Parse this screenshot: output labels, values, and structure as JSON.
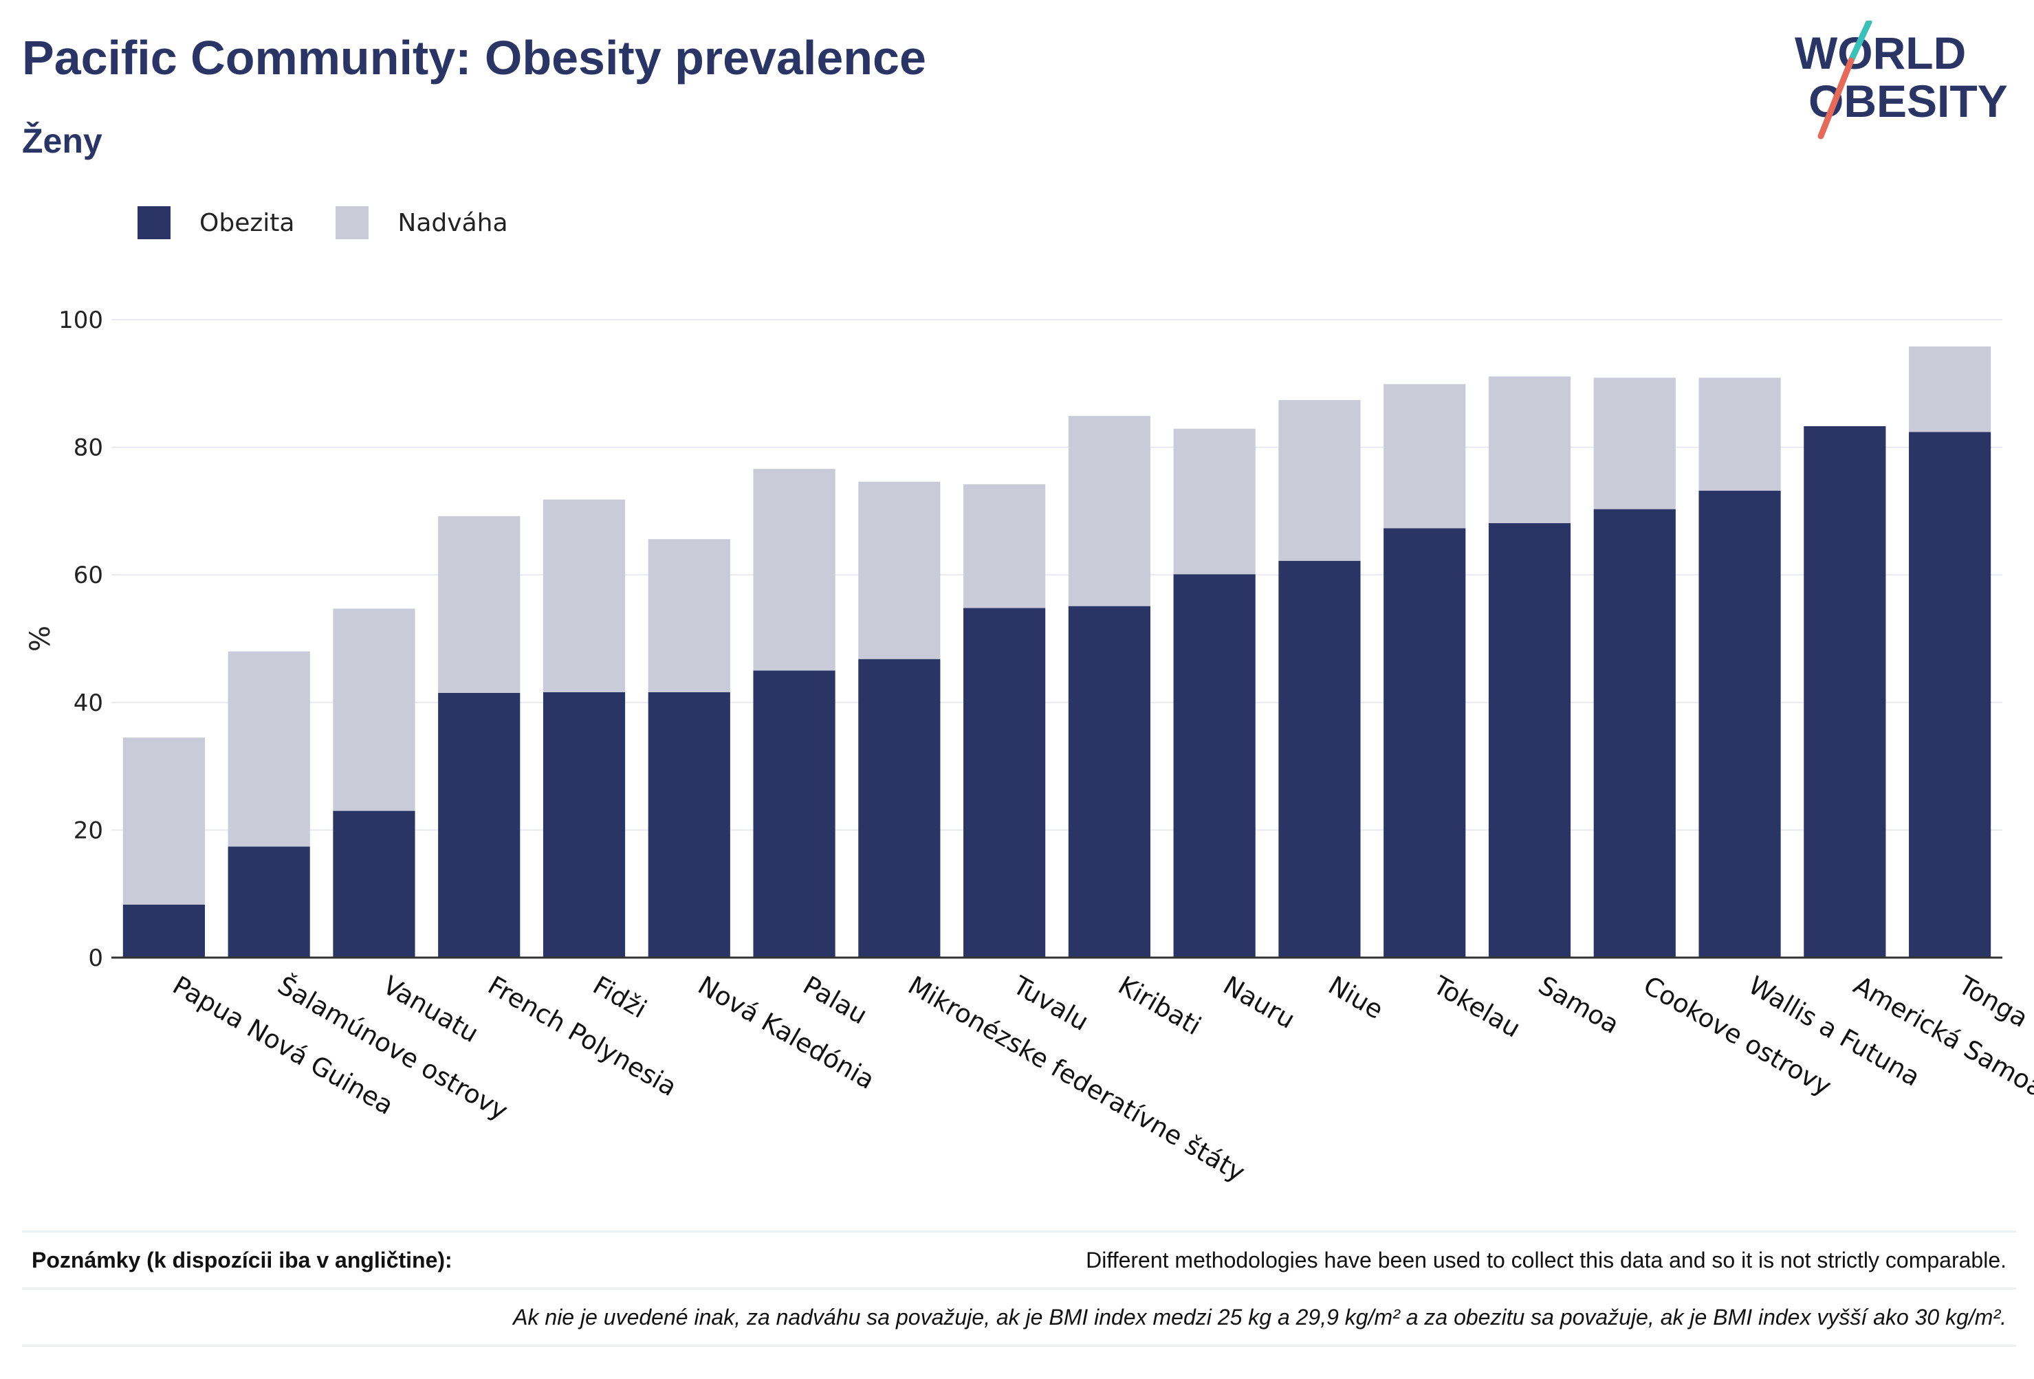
{
  "header": {
    "title": "Pacific Community: Obesity prevalence",
    "subtitle": "Ženy",
    "logo_text_1": "WORLD",
    "logo_text_2": "OBESITY"
  },
  "legend": {
    "items": [
      {
        "label": "Obezita",
        "color": "#2a3566"
      },
      {
        "label": "Nadváha",
        "color": "#c9cbd8"
      }
    ]
  },
  "chart_data": {
    "type": "bar",
    "stacked": true,
    "ylabel": "%",
    "xlabel": "",
    "ylim": [
      0,
      100
    ],
    "yticks": [
      0,
      20,
      40,
      60,
      80,
      100
    ],
    "grid": true,
    "legend_position": "top-left",
    "categories": [
      "Papua Nová Guinea",
      "Šalamúnove ostrovy",
      "Vanuatu",
      "French Polynesia",
      "Fidži",
      "Nová Kaledónia",
      "Palau",
      "Mikronézske federatívne štáty",
      "Tuvalu",
      "Kiribati",
      "Nauru",
      "Niue",
      "Tokelau",
      "Samoa",
      "Cookove ostrovy",
      "Wallis a Futuna",
      "Americká Samoa",
      "Tonga"
    ],
    "series": [
      {
        "name": "Obezita",
        "color": "#2a3566",
        "values": [
          8.3,
          17.4,
          23.0,
          41.5,
          41.6,
          41.6,
          45.0,
          46.8,
          54.8,
          55.1,
          60.1,
          62.2,
          67.3,
          68.1,
          70.3,
          73.2,
          83.3,
          82.4
        ]
      },
      {
        "name": "Nadváha",
        "color": "#c9cbd8",
        "values": [
          26.2,
          30.6,
          31.7,
          27.7,
          30.2,
          24.0,
          31.6,
          27.8,
          19.4,
          29.8,
          22.8,
          25.2,
          22.6,
          23.0,
          20.6,
          17.7,
          0,
          13.4
        ]
      }
    ]
  },
  "notes": {
    "label": "Poznámky (k dispozícii iba v angličtine):",
    "text_1": "Different methodologies have been used to collect this data and so it is not strictly comparable.",
    "text_2": "Ak nie je uvedené inak, za nadváhu sa považuje, ak je BMI index medzi 25 kg a 29,9 kg/m² a za obezitu sa považuje, ak je BMI index vyšší ako 30 kg/m²."
  }
}
